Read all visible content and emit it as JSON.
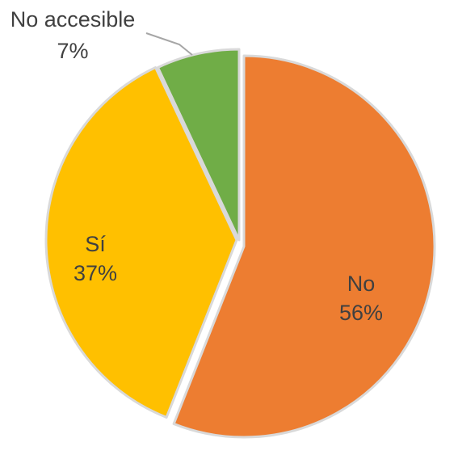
{
  "chart_data": {
    "type": "pie",
    "slices": [
      {
        "label": "No",
        "value": 56,
        "percent_label": "56%",
        "color": "#ED7D31",
        "label_text_color": "#404040"
      },
      {
        "label": "Sí",
        "value": 37,
        "percent_label": "37%",
        "color": "#FFC000",
        "label_text_color": "#404040"
      },
      {
        "label": "No accesible",
        "value": 7,
        "percent_label": "7%",
        "color": "#70AD47",
        "label_text_color": "#404040"
      }
    ],
    "start_angle_deg": 0,
    "direction": "clockwise",
    "exploded": true,
    "slice_border_color": "#D9D9D9",
    "leader_line_color": "#A6A6A6",
    "legend": "none"
  }
}
